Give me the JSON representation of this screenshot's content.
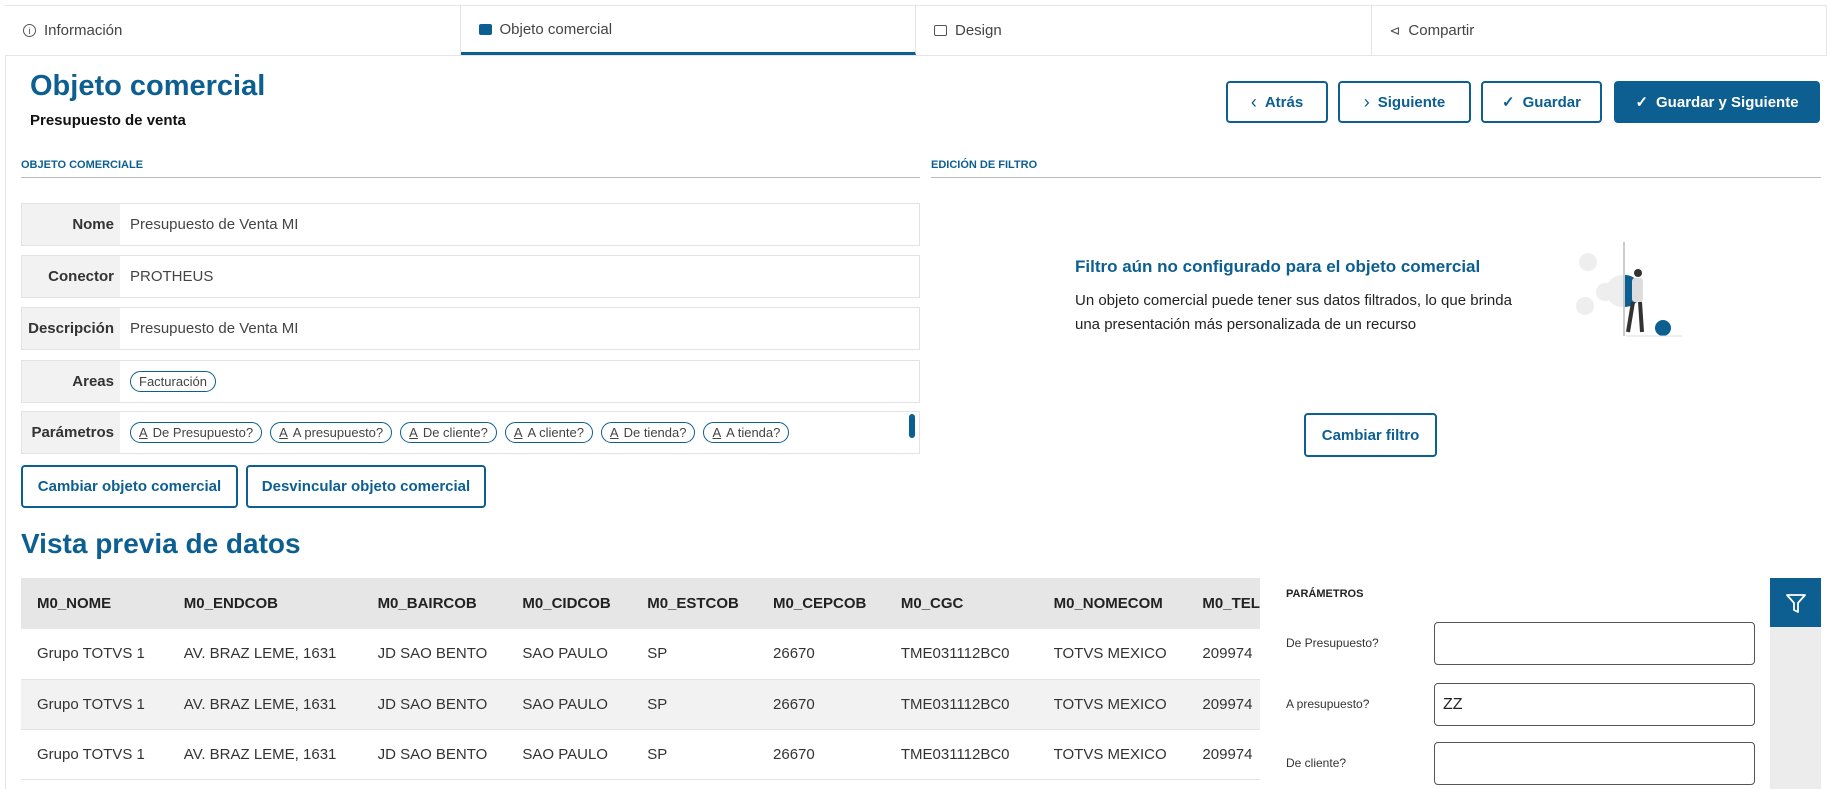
{
  "tabs": [
    {
      "label": "Información",
      "icon": "info-icon"
    },
    {
      "label": "Objeto comercial",
      "icon": "briefcase-icon"
    },
    {
      "label": "Design",
      "icon": "image-icon"
    },
    {
      "label": "Compartir",
      "icon": "share-icon"
    }
  ],
  "header": {
    "title": "Objeto comercial",
    "subtitle": "Presupuesto de venta"
  },
  "actions": {
    "back": "Atrás",
    "next": "Siguiente",
    "save": "Guardar",
    "save_next": "Guardar y Siguiente"
  },
  "colors": {
    "primary": "#0c5f90"
  },
  "left_section": {
    "title": "OBJETO COMERCIALE",
    "fields": {
      "nome_label": "Nome",
      "nome": "Presupuesto de Venta MI",
      "conector_label": "Conector",
      "conector": "PROTHEUS",
      "desc_label": "Descripción",
      "desc": "Presupuesto de Venta MI",
      "areas_label": "Areas",
      "params_label": "Parámetros"
    },
    "areas": [
      "Facturación"
    ],
    "params": [
      "De Presupuesto?",
      "A presupuesto?",
      "De cliente?",
      "A cliente?",
      "De tienda?",
      "A tienda?"
    ],
    "change_button": "Cambiar objeto comercial",
    "unlink_button": "Desvincular objeto comercial"
  },
  "right_section": {
    "title": "EDICIÓN DE FILTRO",
    "empty_title": "Filtro aún no configurado para el objeto comercial",
    "empty_line1": "Un objeto comercial puede tener sus datos filtrados, lo que brinda",
    "empty_line2": "una presentación más personalizada de un recurso",
    "change_filter": "Cambiar filtro"
  },
  "preview": {
    "title": "Vista previa de datos",
    "columns": [
      "M0_NOME",
      "M0_ENDCOB",
      "M0_BAIRCOB",
      "M0_CIDCOB",
      "M0_ESTCOB",
      "M0_CEPCOB",
      "M0_CGC",
      "M0_NOMECOM",
      "M0_TEL"
    ],
    "rows": [
      [
        "Grupo TOTVS 1",
        "AV. BRAZ LEME, 1631",
        "JD SAO BENTO",
        "SAO PAULO",
        "SP",
        "26670",
        "TME031112BC0",
        "TOTVS MEXICO",
        "209974"
      ],
      [
        "Grupo TOTVS 1",
        "AV. BRAZ LEME, 1631",
        "JD SAO BENTO",
        "SAO PAULO",
        "SP",
        "26670",
        "TME031112BC0",
        "TOTVS MEXICO",
        "209974"
      ],
      [
        "Grupo TOTVS 1",
        "AV. BRAZ LEME, 1631",
        "JD SAO BENTO",
        "SAO PAULO",
        "SP",
        "26670",
        "TME031112BC0",
        "TOTVS MEXICO",
        "209974"
      ]
    ]
  },
  "parameters_panel": {
    "title": "PARÁMETROS",
    "fields": [
      {
        "label": "De Presupuesto?",
        "value": ""
      },
      {
        "label": "A presupuesto?",
        "value": "ZZ"
      },
      {
        "label": "De cliente?",
        "value": ""
      }
    ]
  }
}
